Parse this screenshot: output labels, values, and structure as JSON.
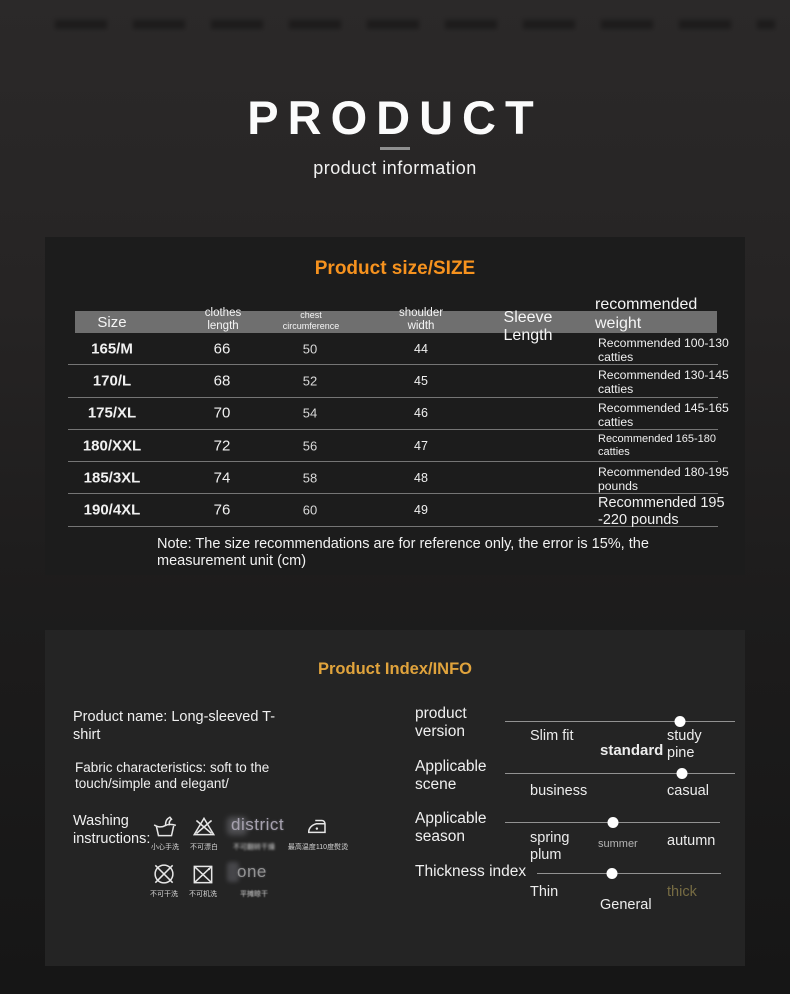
{
  "header": {
    "title": "PRODUCT",
    "subtitle": "product information"
  },
  "size_panel": {
    "title": "Product size/SIZE",
    "columns": [
      "Size",
      "clothes length",
      "chest circumference",
      "shoulder width",
      "Sleeve Length",
      "recommended weight"
    ],
    "rows": [
      {
        "size": "165/M",
        "clothes": "66",
        "chest": "50",
        "shoulder": "44",
        "sleeve": "",
        "weight": "Recommended 100-130 catties"
      },
      {
        "size": "170/L",
        "clothes": "68",
        "chest": "52",
        "shoulder": "45",
        "sleeve": "",
        "weight": "Recommended 130-145 catties"
      },
      {
        "size": "175/XL",
        "clothes": "70",
        "chest": "54",
        "shoulder": "46",
        "sleeve": "",
        "weight": "Recommended 145-165 catties"
      },
      {
        "size": "180/XXL",
        "clothes": "72",
        "chest": "56",
        "shoulder": "47",
        "sleeve": "",
        "weight": "Recommended 165-180 catties"
      },
      {
        "size": "185/3XL",
        "clothes": "74",
        "chest": "58",
        "shoulder": "48",
        "sleeve": "",
        "weight": "Recommended 180-195 pounds"
      },
      {
        "size": "190/4XL",
        "clothes": "76",
        "chest": "60",
        "shoulder": "49",
        "sleeve": "",
        "weight": "Recommended 195 -220 pounds"
      }
    ],
    "note": "Note: The size recommendations are for reference only, the error is 15%, the measurement unit (cm)"
  },
  "info_panel": {
    "title": "Product Index/INFO",
    "product_name": "Product name: Long-sleeved T-shirt",
    "fabric": "Fabric characteristics: soft to the touch/simple and elegant/",
    "washing_label": "Washing instructions:",
    "washing": [
      {
        "icon": "hand-wash-icon",
        "caption": "小心手洗",
        "overlay": ""
      },
      {
        "icon": "no-bleach-icon",
        "caption": "不可漂白",
        "overlay": ""
      },
      {
        "icon": "no-tumble-dry-icon",
        "caption": "不可翻转干燥",
        "overlay": "district"
      },
      {
        "icon": "iron-max-110-icon",
        "caption": "最高温度110度熨烫",
        "overlay": ""
      },
      {
        "icon": "no-dry-clean-icon",
        "caption": "不可干洗",
        "overlay": ""
      },
      {
        "icon": "no-machine-wash-icon",
        "caption": "不可机洗",
        "overlay": ""
      },
      {
        "icon": "dry-flat-icon",
        "caption": "平摊晾干",
        "overlay": "one"
      }
    ],
    "sliders": [
      {
        "label": "product version",
        "left": "Slim fit",
        "mid": "standard",
        "right": "study pine",
        "dot": 0.76
      },
      {
        "label": "Applicable scene",
        "left": "business",
        "mid": "",
        "right": "casual",
        "dot": 0.77
      },
      {
        "label": "Applicable season",
        "left": "spring plum",
        "mid": "summer",
        "right": "autumn",
        "dot": 0.5
      },
      {
        "label": "Thickness index",
        "left": "Thin",
        "mid": "General",
        "right": "thick",
        "dot": 0.41
      }
    ]
  },
  "colors": {
    "size_title_accent": "#f6921e",
    "info_title_accent": "#e0a33c",
    "thick_muted": "#776c43",
    "table_header_bar": "#6f6f6f"
  }
}
